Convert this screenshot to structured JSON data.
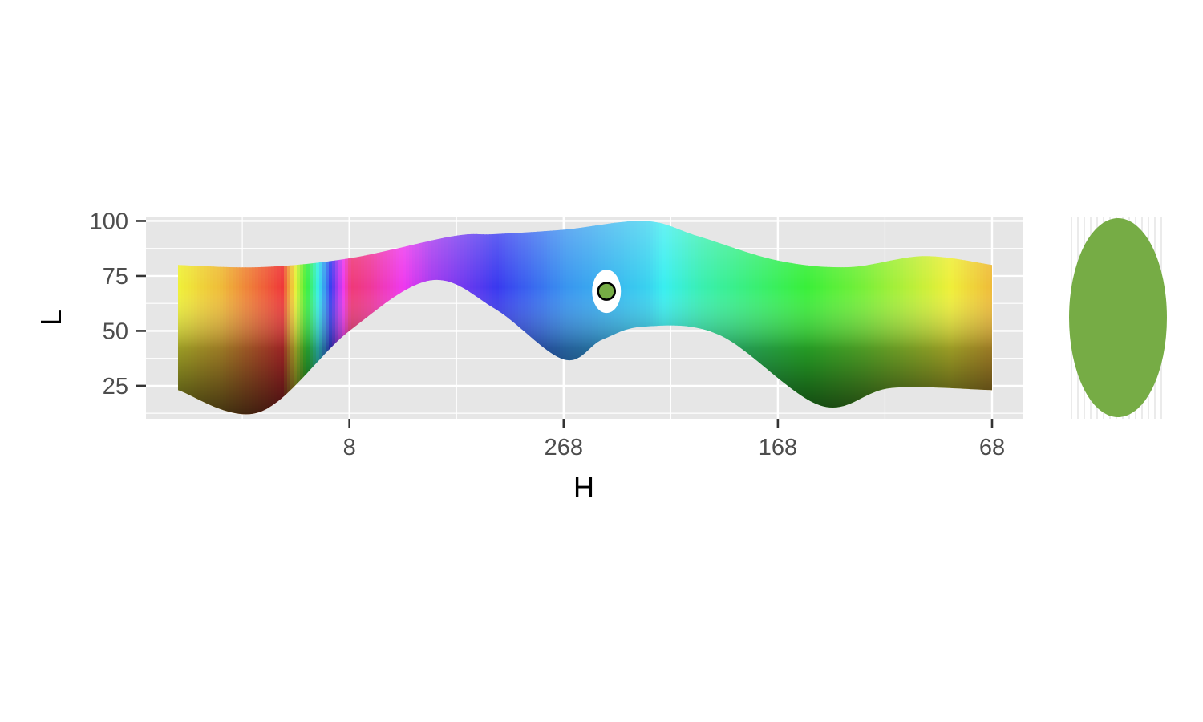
{
  "chart_data": {
    "type": "area",
    "xlabel": "H",
    "ylabel": "L",
    "x_ticks": [
      "8",
      "268",
      "168",
      "68"
    ],
    "y_ticks": [
      25,
      50,
      75,
      100
    ],
    "ylim": [
      10,
      102
    ],
    "grid": true,
    "x_domain": {
      "start_hue": 88,
      "end_hue": 68,
      "direction": "decreasing"
    },
    "gamut_upper_L": [
      {
        "H": 88,
        "L": 80
      },
      {
        "H": 50,
        "L": 79
      },
      {
        "H": 8,
        "L": 83
      },
      {
        "H": 320,
        "L": 93
      },
      {
        "H": 300,
        "L": 94
      },
      {
        "H": 268,
        "L": 96
      },
      {
        "H": 230,
        "L": 100
      },
      {
        "H": 205,
        "L": 93
      },
      {
        "H": 168,
        "L": 82
      },
      {
        "H": 135,
        "L": 79
      },
      {
        "H": 100,
        "L": 84
      },
      {
        "H": 68,
        "L": 80
      }
    ],
    "gamut_lower_L": [
      {
        "H": 88,
        "L": 23
      },
      {
        "H": 50,
        "L": 13
      },
      {
        "H": 8,
        "L": 50
      },
      {
        "H": 330,
        "L": 73
      },
      {
        "H": 300,
        "L": 60
      },
      {
        "H": 268,
        "L": 37
      },
      {
        "H": 250,
        "L": 46
      },
      {
        "H": 230,
        "L": 52
      },
      {
        "H": 195,
        "L": 48
      },
      {
        "H": 148,
        "L": 16
      },
      {
        "H": 115,
        "L": 24
      },
      {
        "H": 68,
        "L": 23
      }
    ],
    "selected_point": {
      "H": 248,
      "L": 68,
      "color": "#76ac45"
    },
    "swatch": {
      "color": "#76ac45"
    }
  },
  "colors": {
    "panel_bg": "#e6e6e6",
    "grid": "#ffffff",
    "tick_text": "#4d4d4d",
    "tick_mark": "#333333",
    "axis_title": "#000000"
  }
}
